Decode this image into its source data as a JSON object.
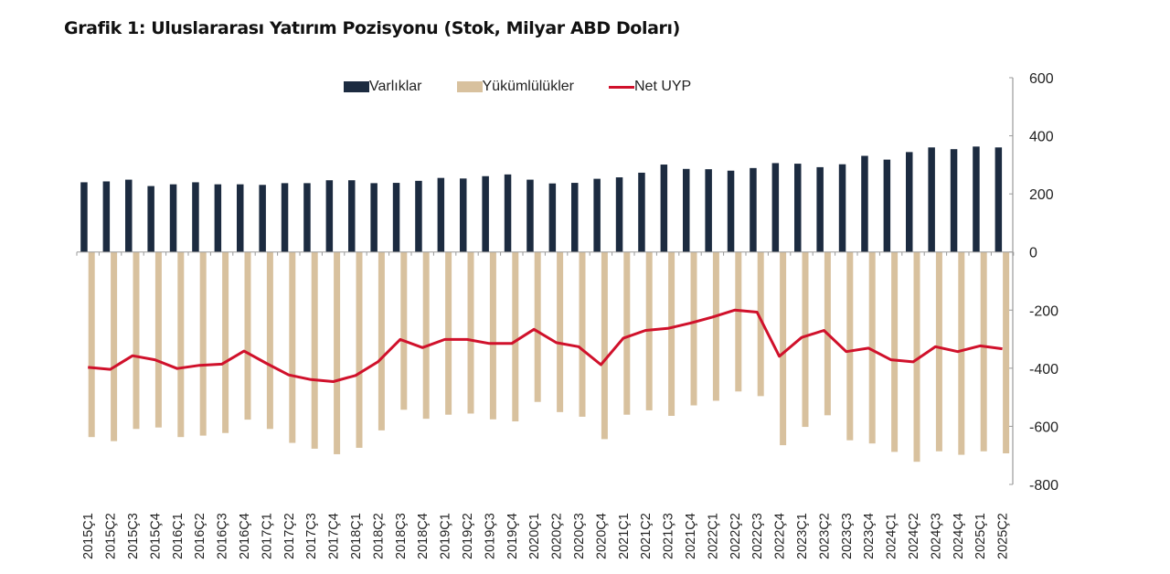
{
  "title": "Grafik 1: Uluslararası Yatırım Pozisyonu (Stok, Milyar ABD Doları)",
  "legend": [
    {
      "label": "Varlıklar",
      "color": "#1c2b40",
      "kind": "bar"
    },
    {
      "label": "Yükümlülükler",
      "color": "#d8c19e",
      "kind": "bar"
    },
    {
      "label": "Net UYP",
      "color": "#d0112b",
      "kind": "line"
    }
  ],
  "chart_data": {
    "type": "bar",
    "title": "Grafik 1: Uluslararası Yatırım Pozisyonu (Stok, Milyar ABD Doları)",
    "xlabel": "",
    "ylabel": "",
    "ylim": [
      -800,
      600
    ],
    "yticks": [
      600,
      400,
      200,
      0,
      -200,
      -400,
      -600,
      -800
    ],
    "y_axis_position": "right",
    "legend_position": "top",
    "grid": false,
    "categories": [
      "2015Ç1",
      "2015Ç2",
      "2015Ç3",
      "2015Ç4",
      "2016Ç1",
      "2016Ç2",
      "2016Ç3",
      "2016Ç4",
      "2017Ç1",
      "2017Ç2",
      "2017Ç3",
      "2017Ç4",
      "2018Ç1",
      "2018Ç2",
      "2018Ç3",
      "2018Ç4",
      "2019Ç1",
      "2019Ç2",
      "2019Ç3",
      "2019Ç4",
      "2020Ç1",
      "2020Ç2",
      "2020Ç3",
      "2020Ç4",
      "2021Ç1",
      "2021Ç2",
      "2021Ç3",
      "2021Ç4",
      "2022Ç1",
      "2022Ç2",
      "2022Ç3",
      "2022Ç4",
      "2023Ç1",
      "2023Ç2",
      "2023Ç3",
      "2023Ç4",
      "2024Ç1",
      "2024Ç2",
      "2024Ç3",
      "2024Ç4",
      "2025Ç1",
      "2025Ç2"
    ],
    "series": [
      {
        "name": "Varlıklar",
        "type": "bar",
        "color": "#1c2b40",
        "values": [
          240,
          243,
          249,
          227,
          233,
          240,
          233,
          233,
          231,
          237,
          237,
          247,
          247,
          237,
          238,
          245,
          255,
          253,
          261,
          267,
          249,
          236,
          238,
          252,
          257,
          273,
          301,
          286,
          285,
          280,
          289,
          306,
          304,
          292,
          302,
          331,
          318,
          344,
          360,
          354,
          363,
          360
        ]
      },
      {
        "name": "Yükümlülükler",
        "type": "bar",
        "color": "#d8c19e",
        "values": [
          -637,
          -651,
          -609,
          -604,
          -637,
          -632,
          -623,
          -577,
          -609,
          -657,
          -677,
          -696,
          -674,
          -614,
          -543,
          -574,
          -560,
          -556,
          -576,
          -583,
          -516,
          -551,
          -567,
          -644,
          -560,
          -545,
          -564,
          -528,
          -512,
          -480,
          -496,
          -665,
          -602,
          -562,
          -648,
          -659,
          -688,
          -722,
          -686,
          -698,
          -686,
          -693
        ]
      },
      {
        "name": "Net UYP",
        "type": "line",
        "color": "#d0112b",
        "values": [
          -397,
          -404,
          -357,
          -371,
          -401,
          -390,
          -386,
          -341,
          -383,
          -423,
          -439,
          -446,
          -425,
          -378,
          -301,
          -329,
          -301,
          -301,
          -315,
          -315,
          -266,
          -312,
          -326,
          -388,
          -297,
          -270,
          -263,
          -245,
          -224,
          -200,
          -207,
          -359,
          -294,
          -270,
          -343,
          -331,
          -371,
          -378,
          -326,
          -343,
          -323,
          -333
        ]
      }
    ]
  }
}
